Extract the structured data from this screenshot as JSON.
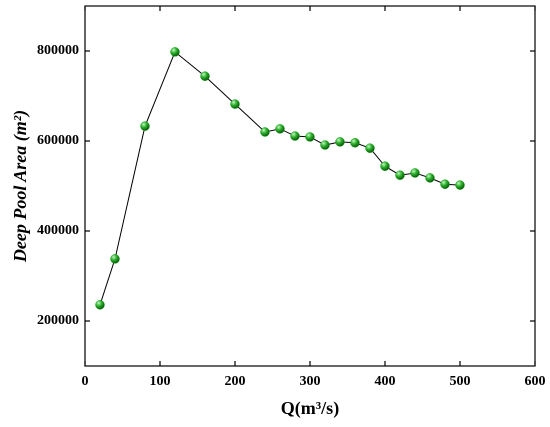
{
  "chart_data": {
    "type": "line",
    "x_label": "Q(m³/s)",
    "y_label": "Deep Pool Area (m²)",
    "x": [
      20,
      40,
      80,
      120,
      160,
      200,
      240,
      260,
      280,
      300,
      320,
      340,
      360,
      380,
      400,
      420,
      440,
      460,
      480,
      500
    ],
    "series": [
      {
        "color": "#1a9e1a",
        "values": [
          236000,
          338000,
          633000,
          798000,
          744000,
          682000,
          620000,
          627000,
          611000,
          609000,
          591000,
          598000,
          596000,
          584000,
          544000,
          524000,
          529000,
          518000,
          504000,
          502000
        ]
      }
    ],
    "xlim": [
      0,
      600
    ],
    "xticks": [
      0,
      100,
      200,
      300,
      400,
      500,
      600
    ],
    "ylim": [
      100000,
      900000
    ],
    "yticks": [
      200000,
      400000,
      600000,
      800000
    ],
    "grid": false
  }
}
